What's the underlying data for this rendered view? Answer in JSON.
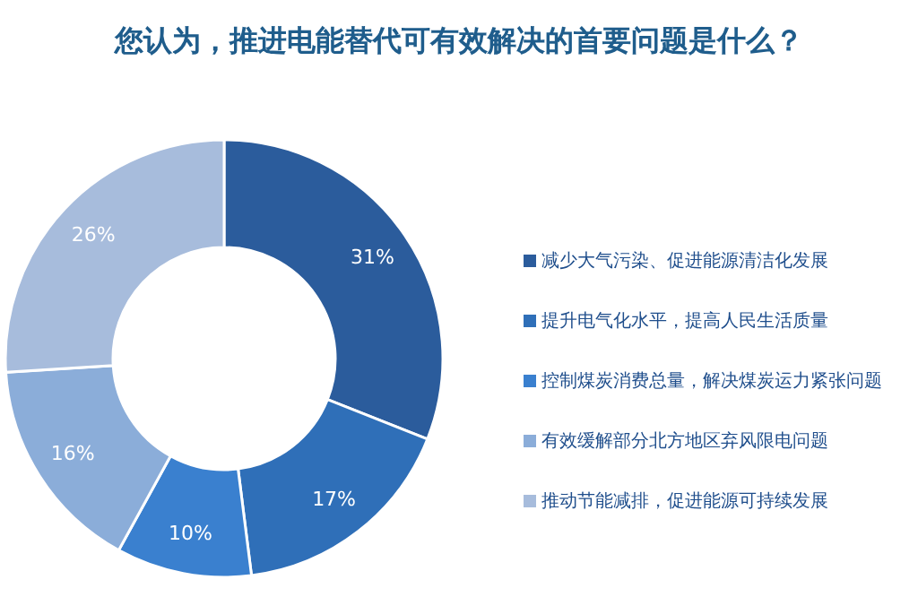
{
  "chart_data": {
    "type": "donut",
    "title": "您认为，推进电能替代可有效解决的首要问题是什么？",
    "categories": [
      "减少大气污染、促进能源清洁化发展",
      "提升电气化水平，提高人民生活质量",
      "控制煤炭消费总量，解决煤炭运力紧张问题",
      "有效缓解部分北方地区弃风限电问题",
      "推动节能减排，促进能源可持续发展"
    ],
    "values": [
      31,
      17,
      10,
      16,
      26
    ],
    "colors": [
      "#2b5c9c",
      "#2f6fb8",
      "#3a80cf",
      "#8badd9",
      "#a7bcdc"
    ],
    "value_labels": [
      "31%",
      "17%",
      "10%",
      "16%",
      "26%"
    ],
    "legend": "right"
  }
}
